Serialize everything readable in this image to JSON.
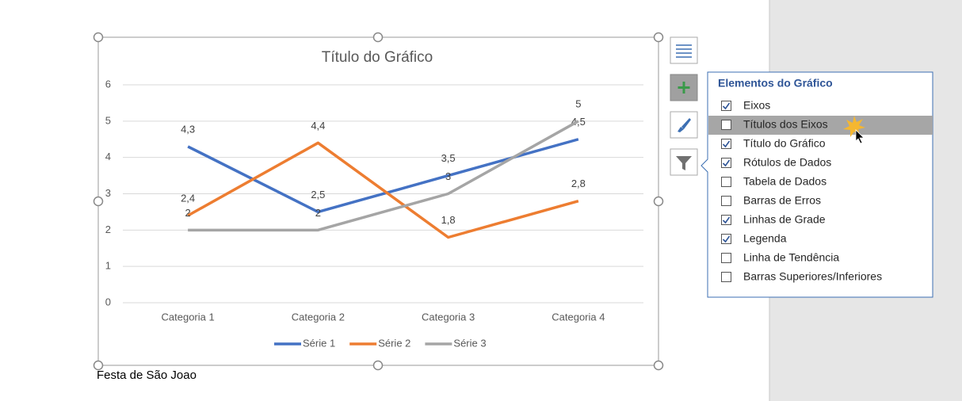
{
  "chart_data": {
    "type": "line",
    "title": "Título do Gráfico",
    "categories": [
      "Categoria 1",
      "Categoria 2",
      "Categoria 3",
      "Categoria 4"
    ],
    "series": [
      {
        "name": "Série 1",
        "color": "#4472c4",
        "values": [
          4.3,
          2.5,
          3.5,
          4.5
        ],
        "value_labels": [
          "4,3",
          "2,5",
          "3,5",
          "4,5"
        ]
      },
      {
        "name": "Série 2",
        "color": "#ed7d31",
        "values": [
          2.4,
          4.4,
          1.8,
          2.8
        ],
        "value_labels": [
          "2,4",
          "4,4",
          "1,8",
          "2,8"
        ]
      },
      {
        "name": "Série 3",
        "color": "#a5a5a5",
        "values": [
          2,
          2,
          3,
          5
        ],
        "value_labels": [
          "2",
          "2",
          "3",
          "5"
        ]
      }
    ],
    "ylim": [
      0,
      6
    ],
    "yticks": [
      0,
      1,
      2,
      3,
      4,
      5,
      6
    ],
    "grid": true,
    "legend": "bottom"
  },
  "document": {
    "caption": "Festa de São Joao"
  },
  "panel": {
    "title": "Elementos do Gráfico",
    "items": [
      {
        "label": "Eixos",
        "checked": true
      },
      {
        "label": "Títulos dos Eixos",
        "checked": false,
        "hover": true
      },
      {
        "label": "Título do Gráfico",
        "checked": true
      },
      {
        "label": "Rótulos de Dados",
        "checked": true
      },
      {
        "label": "Tabela de Dados",
        "checked": false
      },
      {
        "label": "Barras de Erros",
        "checked": false
      },
      {
        "label": "Linhas de Grade",
        "checked": true
      },
      {
        "label": "Legenda",
        "checked": true
      },
      {
        "label": "Linha de Tendência",
        "checked": false
      },
      {
        "label": "Barras Superiores/Inferiores",
        "checked": false
      }
    ]
  }
}
